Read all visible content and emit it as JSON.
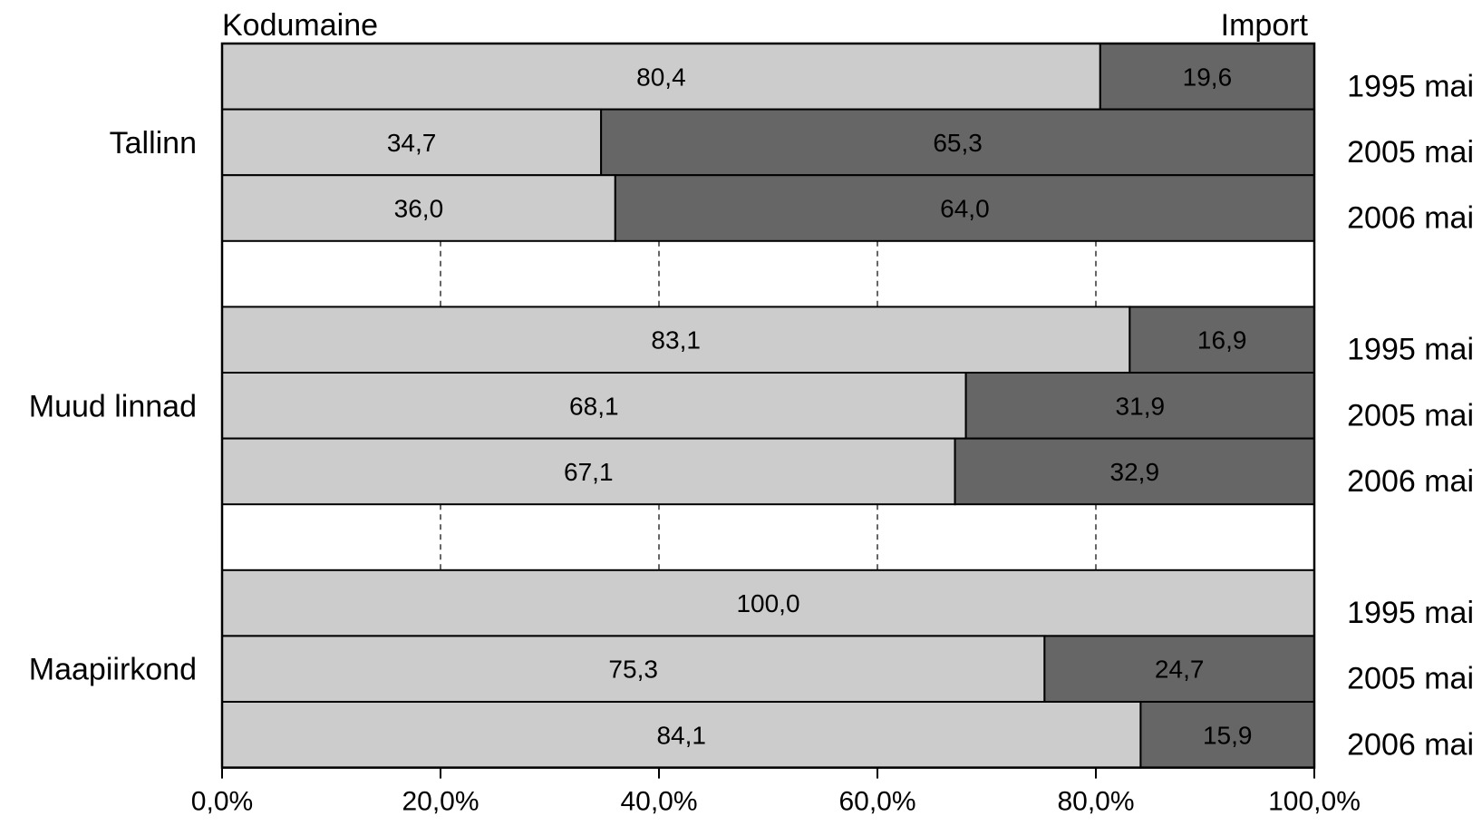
{
  "chart_data": {
    "type": "bar",
    "orientation": "horizontal",
    "stacked": true,
    "percent": true,
    "series": [
      {
        "name": "Kodumaine",
        "color": "#cccccc",
        "values": [
          80.4,
          34.7,
          36.0,
          83.1,
          68.1,
          67.1,
          100.0,
          75.3,
          84.1
        ],
        "labels": [
          "80,4",
          "34,7",
          "36,0",
          "83,1",
          "68,1",
          "67,1",
          "100,0",
          "75,3",
          "84,1"
        ]
      },
      {
        "name": "Import",
        "color": "#666666",
        "values": [
          19.6,
          65.3,
          64.0,
          16.9,
          31.9,
          32.9,
          0.0,
          24.7,
          15.9
        ],
        "labels": [
          "19,6",
          "65,3",
          "64,0",
          "16,9",
          "31,9",
          "32,9",
          "",
          "24,7",
          "15,9"
        ]
      }
    ],
    "groups": [
      {
        "name": "Tallinn",
        "periods": [
          "1995 mai",
          "2005 mai",
          "2006 mai"
        ]
      },
      {
        "name": "Muud linnad",
        "periods": [
          "1995 mai",
          "2005 mai",
          "2006 mai"
        ]
      },
      {
        "name": "Maapiirkond",
        "periods": [
          "1995 mai",
          "2005 mai",
          "2006 mai"
        ]
      }
    ],
    "xlim": [
      0,
      100
    ],
    "x_ticks": [
      "0,0%",
      "20,0%",
      "40,0%",
      "60,0%",
      "80,0%",
      "100,0%"
    ],
    "grid": "vertical dashed in gap rows",
    "legend_left": "Kodumaine",
    "legend_right": "Import"
  }
}
